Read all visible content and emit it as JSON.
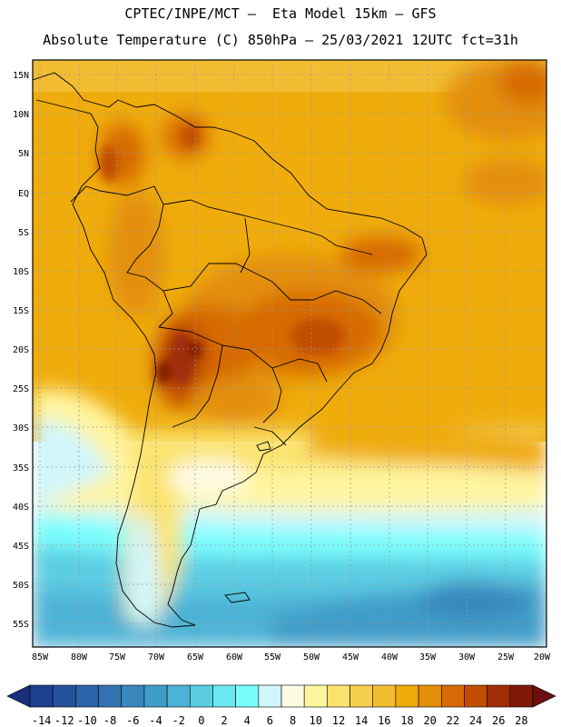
{
  "header": {
    "line1": "CPTEC/INPE/MCT –  Eta Model 15km – GFS",
    "line2": "Absolute Temperature (C) 850hPa – 25/03/2021 12UTC fct=31h"
  },
  "axes": {
    "lat_labels": [
      "15N",
      "10N",
      "5N",
      "EQ",
      "5S",
      "10S",
      "15S",
      "20S",
      "25S",
      "30S",
      "35S",
      "40S",
      "45S",
      "50S",
      "55S"
    ],
    "lon_labels": [
      "85W",
      "80W",
      "75W",
      "70W",
      "65W",
      "60W",
      "55W",
      "50W",
      "45W",
      "40W",
      "35W",
      "30W",
      "25W",
      "20W"
    ]
  },
  "colorbar": {
    "labels": [
      "-14",
      "-12",
      "-10",
      "-8",
      "-6",
      "-4",
      "-2",
      "0",
      "2",
      "4",
      "6",
      "8",
      "10",
      "12",
      "14",
      "16",
      "18",
      "20",
      "22",
      "24",
      "26",
      "28"
    ],
    "colors": [
      "#1f3f8f",
      "#24509c",
      "#2b62a8",
      "#3274b3",
      "#3987be",
      "#409cc8",
      "#4db3d6",
      "#5ccde3",
      "#6be8ee",
      "#7afdfd",
      "#d0f6fc",
      "#fffae4",
      "#fff5a0",
      "#fbe36e",
      "#f7cf4e",
      "#f2bd33",
      "#efac0c",
      "#e38f0a",
      "#d76a05",
      "#c14d03",
      "#a12d07",
      "#7f1a06"
    ],
    "under_color": "#1a2f7a",
    "over_color": "#6b0f0f"
  }
}
